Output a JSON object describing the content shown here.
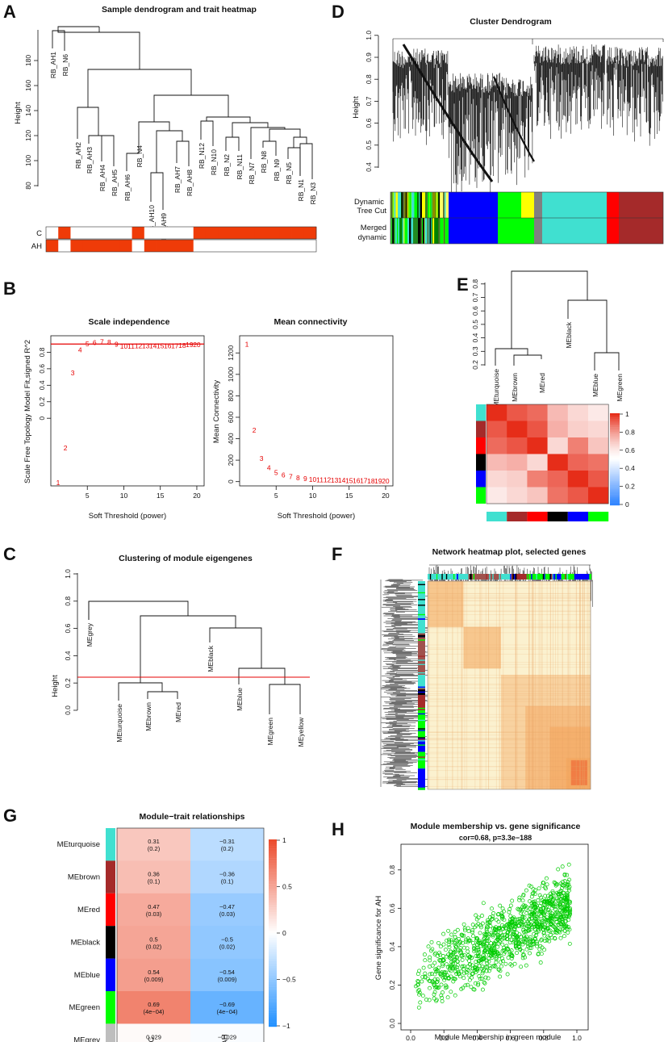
{
  "panels": {
    "A": {
      "label": "A",
      "title": "Sample dendrogram and trait heatmap",
      "ylabel": "Height",
      "yticks": [
        "80",
        "100",
        "120",
        "140",
        "160",
        "180"
      ],
      "samples": [
        "RB_AH1",
        "RB_N6",
        "RB_AH2",
        "RB_AH3",
        "RB_AH4",
        "RB_AH5",
        "RB_AH6",
        "RB_N4",
        "RB_AH10",
        "RB_AH9",
        "RB_AH7",
        "RB_AH8",
        "RB_N12",
        "RB_N10",
        "RB_N2",
        "RB_N11",
        "RB_N7",
        "RB_N8",
        "RB_N9",
        "RB_N5",
        "RB_N1",
        "RB_N3"
      ],
      "traits": [
        "C",
        "AH"
      ]
    },
    "B": {
      "label": "B",
      "scale_title": "Scale independence",
      "scale_ylabel": "Scale Free Topology Model Fit,signed R^2",
      "mean_title": "Mean connectivity",
      "mean_ylabel": "Mean Connectivity",
      "xlabel": "Soft Threshold (power)",
      "threshold": 0.9
    },
    "C": {
      "label": "C",
      "title": "Clustering of module eigengenes",
      "ylabel": "Height",
      "yticks": [
        "0.0",
        "0.2",
        "0.4",
        "0.6",
        "0.8",
        "1.0"
      ],
      "leaves": [
        "MEgrey",
        "MEturquoise",
        "MEbrown",
        "MEred",
        "MEblack",
        "MEblue",
        "MEgreen",
        "MEyellow"
      ]
    },
    "D": {
      "label": "D",
      "title": "Cluster Dendrogram",
      "ylabel": "Height",
      "yticks": [
        "0.4",
        "0.5",
        "0.6",
        "0.7",
        "0.8",
        "0.9",
        "1.0"
      ],
      "row1": "Dynamic",
      "row1b": "Tree Cut",
      "row2": "Merged",
      "row2b": "dynamic"
    },
    "E": {
      "label": "E",
      "yticks": [
        "0.2",
        "0.3",
        "0.4",
        "0.5",
        "0.6",
        "0.7",
        "0.8"
      ],
      "leaves": [
        "MEturquoise",
        "MEbrown",
        "MEred",
        "MEblack",
        "MEblue",
        "MEgreen"
      ],
      "legend": [
        "1",
        "0.8",
        "0.6",
        "0.4",
        "0.2",
        "0"
      ]
    },
    "F": {
      "label": "F",
      "title": "Network heatmap plot, selected genes"
    },
    "G": {
      "label": "G",
      "title": "Module−trait relationships",
      "columns": [
        "C",
        "AH"
      ],
      "legend": [
        "1",
        "0.5",
        "0",
        "−0.5",
        "−1"
      ]
    },
    "H": {
      "label": "H",
      "title": "Module membership vs. gene significance",
      "subtitle": "cor=0.68, p=3.3e−188",
      "xlabel": "Module Membership in green module",
      "ylabel": "Gene significance for  AH",
      "xticks": [
        "0.0",
        "0.2",
        "0.4",
        "0.6",
        "0.8",
        "1.0"
      ],
      "yticks": [
        "0.0",
        "0.2",
        "0.4",
        "0.6",
        "0.8"
      ]
    }
  },
  "chart_data": [
    {
      "type": "scatter",
      "title": "Scale independence",
      "xlabel": "Soft Threshold (power)",
      "ylabel": "Scale Free Topology Model Fit,signed R^2",
      "x": [
        1,
        2,
        3,
        4,
        5,
        6,
        7,
        8,
        9,
        10,
        11,
        12,
        13,
        14,
        15,
        16,
        17,
        18,
        19,
        20
      ],
      "y": [
        -0.78,
        -0.36,
        0.55,
        0.83,
        0.9,
        0.915,
        0.925,
        0.92,
        0.895,
        0.875,
        0.875,
        0.878,
        0.878,
        0.878,
        0.88,
        0.88,
        0.88,
        0.885,
        0.89,
        0.89
      ],
      "xlim": [
        0,
        21
      ],
      "ylim": [
        -0.82,
        1.0
      ],
      "xticks": [
        5,
        10,
        15,
        20
      ],
      "yticks": [
        0.0,
        0.2,
        0.4,
        0.6,
        0.8
      ],
      "hline": 0.9
    },
    {
      "type": "scatter",
      "title": "Mean connectivity",
      "xlabel": "Soft Threshold (power)",
      "ylabel": "Mean Connectivity",
      "x": [
        1,
        2,
        3,
        4,
        5,
        6,
        7,
        8,
        9,
        10,
        11,
        12,
        13,
        14,
        15,
        16,
        17,
        18,
        19,
        20
      ],
      "y": [
        1280,
        480,
        215,
        130,
        85,
        60,
        45,
        35,
        28,
        22,
        18,
        15,
        13,
        11,
        10,
        9,
        8,
        7,
        6,
        5
      ],
      "xlim": [
        0,
        21
      ],
      "ylim": [
        -40,
        1360
      ],
      "xticks": [
        5,
        10,
        15,
        20
      ],
      "yticks": [
        0,
        200,
        400,
        600,
        800,
        1000,
        1200
      ]
    },
    {
      "type": "heatmap",
      "title": "Module−trait relationships",
      "rows": [
        "MEturquoise",
        "MEbrown",
        "MEred",
        "MEblack",
        "MEblue",
        "MEgreen",
        "MEgrey"
      ],
      "row_colors": [
        "#40e0d0",
        "#a52a2a",
        "#ff0000",
        "#000000",
        "#0000ff",
        "#00ff00",
        "#bebebe"
      ],
      "columns": [
        "C",
        "AH"
      ],
      "values": [
        [
          0.31,
          -0.31
        ],
        [
          0.36,
          -0.36
        ],
        [
          0.47,
          -0.47
        ],
        [
          0.5,
          -0.5
        ],
        [
          0.54,
          -0.54
        ],
        [
          0.69,
          -0.69
        ],
        [
          0.029,
          -0.029
        ]
      ],
      "value_labels": [
        [
          "0.31",
          "−0.31"
        ],
        [
          "0.36",
          "−0.36"
        ],
        [
          "0.47",
          "−0.47"
        ],
        [
          "0.5",
          "−0.5"
        ],
        [
          "0.54",
          "−0.54"
        ],
        [
          "0.69",
          "−0.69"
        ],
        [
          "0.029",
          "−0.029"
        ]
      ],
      "pvalues": [
        [
          "(0.2)",
          "(0.2)"
        ],
        [
          "(0.1)",
          "(0.1)"
        ],
        [
          "(0.03)",
          "(0.03)"
        ],
        [
          "(0.02)",
          "(0.02)"
        ],
        [
          "(0.009)",
          "(0.009)"
        ],
        [
          "(4e−04)",
          "(4e−04)"
        ],
        [
          "(0.9)",
          "(0.9)"
        ]
      ],
      "color_range": [
        -1,
        1
      ]
    },
    {
      "type": "scatter",
      "title": "Module membership vs. gene significance",
      "xlabel": "Module Membership in green module",
      "ylabel": "Gene significance for  AH",
      "cor": 0.68,
      "p": "3.3e-188",
      "xlim": [
        0,
        1
      ],
      "ylim": [
        0,
        0.9
      ],
      "trend": {
        "x_start": 0.05,
        "y_start": 0.22,
        "x_end": 0.95,
        "y_end": 0.62
      },
      "n_points": 1100,
      "point_color": "#00cc00"
    }
  ]
}
